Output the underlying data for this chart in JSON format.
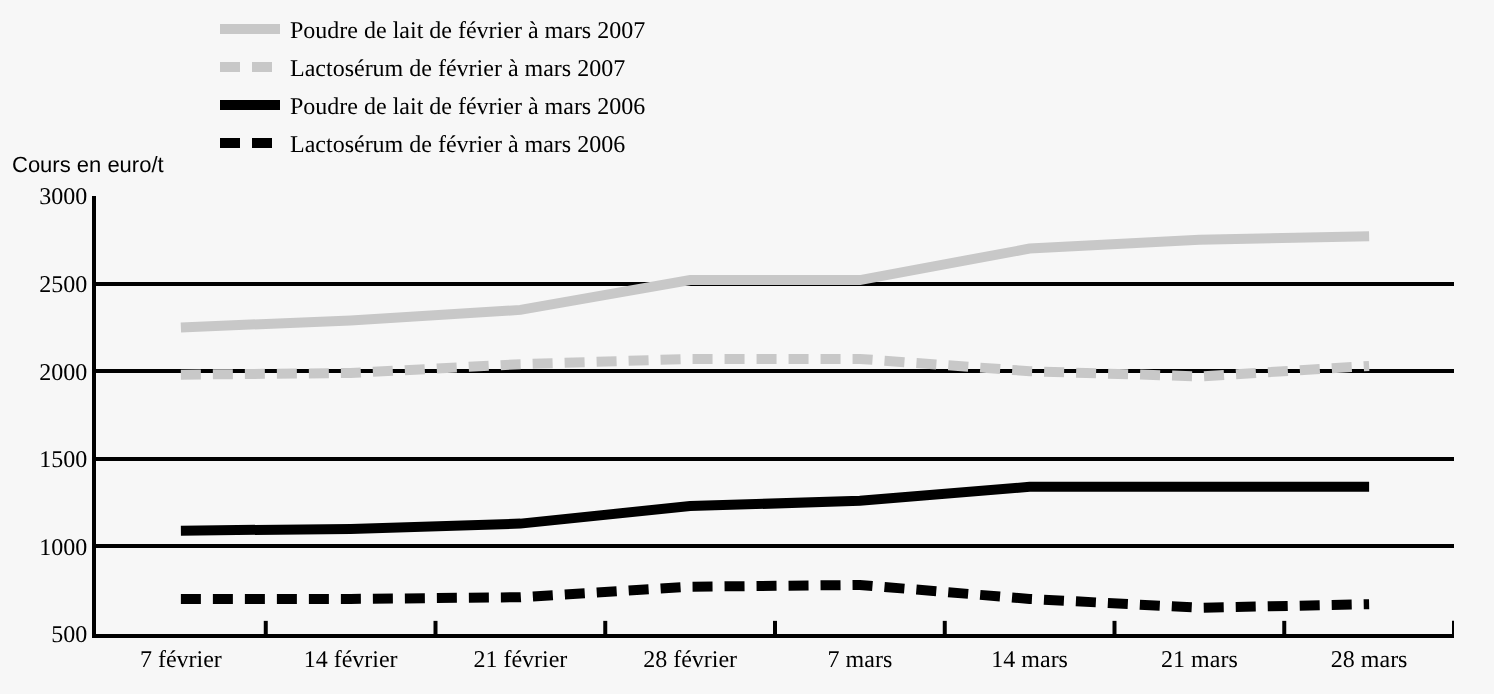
{
  "chart_data": {
    "type": "line",
    "ylabel": "Cours en euro/t",
    "categories": [
      "7 février",
      "14 février",
      "21 février",
      "28 février",
      "7 mars",
      "14 mars",
      "21 mars",
      "28 mars"
    ],
    "series": [
      {
        "name": "Poudre de lait de février à mars 2007",
        "color": "#c8c8c8",
        "line_style": "solid",
        "values": [
          2250,
          2290,
          2350,
          2520,
          2520,
          2700,
          2750,
          2770
        ]
      },
      {
        "name": "Lactosérum de février à mars 2007",
        "color": "#c8c8c8",
        "line_style": "dashed",
        "values": [
          1980,
          1990,
          2040,
          2070,
          2070,
          2000,
          1970,
          2030
        ]
      },
      {
        "name": "Poudre de lait de février à mars 2006",
        "color": "#000000",
        "line_style": "solid",
        "values": [
          1090,
          1100,
          1130,
          1230,
          1260,
          1340,
          1340,
          1340
        ]
      },
      {
        "name": "Lactosérum de février à mars 2006",
        "color": "#000000",
        "line_style": "dashed",
        "values": [
          700,
          700,
          710,
          770,
          780,
          700,
          650,
          670
        ]
      }
    ],
    "ylim": [
      500,
      3000
    ],
    "yticks": [
      500,
      1000,
      1500,
      2000,
      2500,
      3000
    ],
    "grid": "y",
    "legend": "top",
    "marker": "none"
  }
}
